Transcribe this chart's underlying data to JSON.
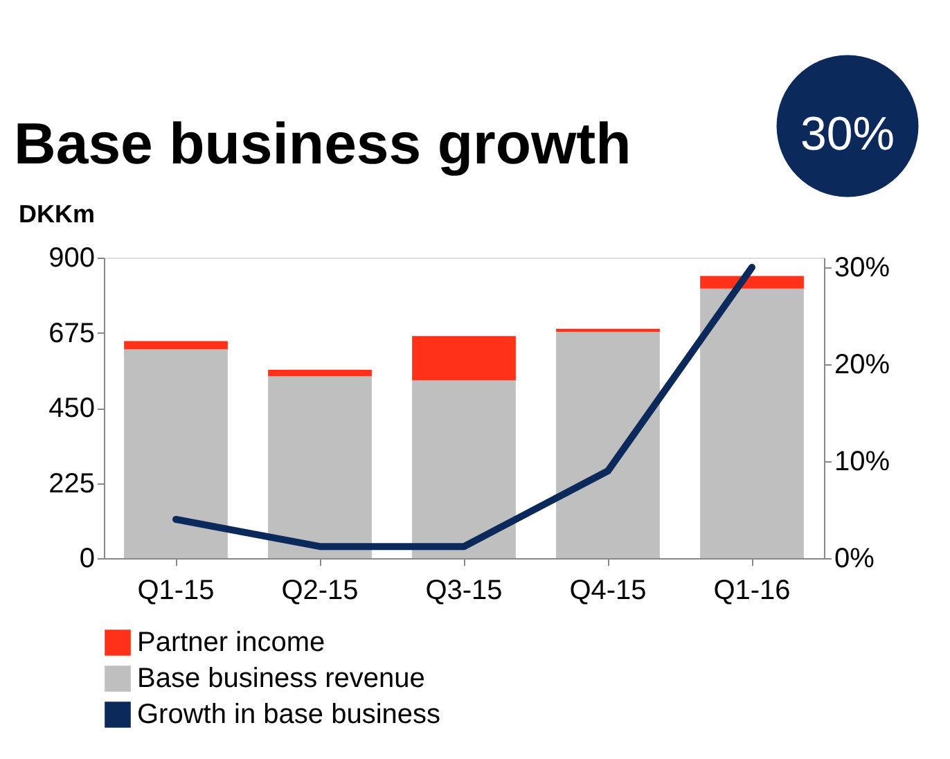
{
  "chart_data": {
    "type": "bar",
    "title": "Base business growth",
    "ylabel": "DKKm",
    "categories": [
      "Q1-15",
      "Q2-15",
      "Q3-15",
      "Q4-15",
      "Q1-16"
    ],
    "stacked": true,
    "series": [
      {
        "name": "Base business revenue",
        "color": "#bfbfbf",
        "values": [
          625,
          545,
          533,
          678,
          807
        ]
      },
      {
        "name": "Partner income",
        "color": "#ff3219",
        "values": [
          25,
          19,
          132,
          9,
          38
        ]
      },
      {
        "name": "Growth in base business",
        "type": "line",
        "axis": "y2",
        "color": "#0b2a5b",
        "values": [
          4,
          1.2,
          1.2,
          9,
          30
        ]
      }
    ],
    "ylim": [
      0,
      900
    ],
    "yticks": [
      0,
      225,
      450,
      675,
      900
    ],
    "y2lim": [
      0,
      31
    ],
    "y2ticks": [
      {
        "value": 0,
        "label": "0%"
      },
      {
        "value": 10,
        "label": "10%"
      },
      {
        "value": 20,
        "label": "20%"
      },
      {
        "value": 30,
        "label": "30%"
      }
    ],
    "annotations": [
      "30%"
    ],
    "legend": "bottom",
    "grid": false
  }
}
